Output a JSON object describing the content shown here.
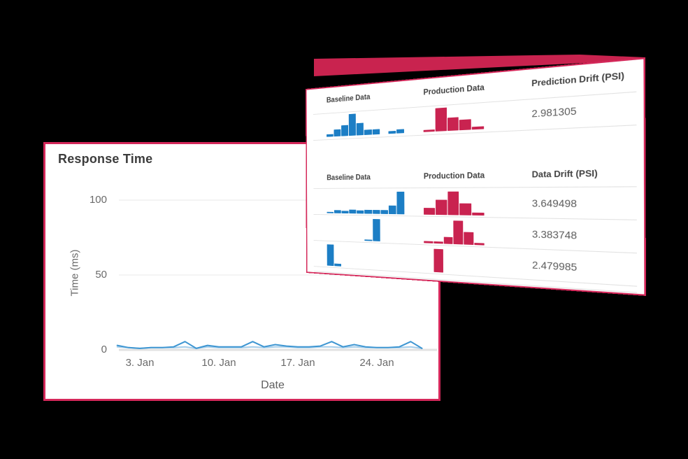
{
  "colors": {
    "accent": "#c9234f",
    "card_border": "#d4285a",
    "baseline_bars": "#1c7ec5",
    "production_bars": "#c92350"
  },
  "response_card": {
    "title": "Response Time",
    "chart_data": {
      "type": "line",
      "title": "Response Time",
      "xlabel": "Date",
      "ylabel": "Time (ms)",
      "ylim": [
        0,
        110
      ],
      "grid": true,
      "legend": "none",
      "yticks": [
        {
          "value": 0,
          "label": "0"
        },
        {
          "value": 50,
          "label": "50"
        },
        {
          "value": 100,
          "label": "100"
        }
      ],
      "xticks": [
        {
          "day": 3,
          "label": "3. Jan"
        },
        {
          "day": 10,
          "label": "10. Jan"
        },
        {
          "day": 17,
          "label": "17. Jan"
        },
        {
          "day": 24,
          "label": "24. Jan"
        }
      ],
      "x_days": [
        1,
        2,
        3,
        4,
        5,
        6,
        7,
        8,
        9,
        10,
        11,
        12,
        13,
        14,
        15,
        16,
        17,
        18,
        19,
        20,
        21,
        22,
        23,
        24,
        25,
        26,
        27,
        28
      ],
      "series": [
        {
          "color": "#a5cde9",
          "values": [
            2,
            1.5,
            1,
            1.5,
            1.5,
            1.5,
            2,
            1,
            2,
            1.5,
            1.5,
            1.5,
            2,
            1.5,
            2,
            2,
            1.5,
            1.5,
            2,
            2,
            1.5,
            2,
            1.5,
            1.5,
            1.5,
            1.5,
            2,
            1
          ]
        },
        {
          "color": "#3e96d2",
          "values": [
            3,
            1.5,
            1,
            1.5,
            1.5,
            2,
            5.5,
            1,
            3,
            2,
            2,
            2,
            5.5,
            2,
            3.5,
            2.5,
            2,
            2,
            2.5,
            5.5,
            2,
            3.5,
            2,
            1.5,
            1.5,
            2,
            5.5,
            1
          ]
        }
      ]
    }
  },
  "drift_card": {
    "chart_data": {
      "type": "table",
      "sections": [
        {
          "columns": [
            "Baseline Data",
            "Production Data",
            "Prediction Drift (PSI)"
          ],
          "rows": [
            {
              "baseline": [
                0.12,
                0.31,
                0.5,
                1,
                0.56,
                0.25,
                0.25,
                0,
                0.12,
                0.19
              ],
              "production": [
                0.1,
                1,
                0.55,
                0.45,
                0.12
              ],
              "value": "2.981305"
            }
          ]
        },
        {
          "columns": [
            "Baseline Data",
            "Production Data",
            "Data Drift (PSI)"
          ],
          "rows": [
            {
              "baseline": [
                0.06,
                0.14,
                0.12,
                0.18,
                0.14,
                0.17,
                0.17,
                0.17,
                0.38,
                1
              ],
              "production": [
                0.3,
                0.65,
                1,
                0.5,
                0.12
              ],
              "value": "3.649498"
            },
            {
              "baseline": [
                0,
                0,
                0,
                0,
                0,
                0.07,
                1,
                0,
                0,
                0
              ],
              "production": [
                0.08,
                0.08,
                0.28,
                1,
                0.52,
                0.08
              ],
              "value": "3.383748"
            },
            {
              "baseline": [
                1,
                0.12,
                0,
                0,
                0,
                0,
                0,
                0,
                0,
                0
              ],
              "production": [
                0,
                1,
                0,
                0,
                0,
                0
              ],
              "value": "2.479985"
            }
          ]
        }
      ]
    }
  }
}
